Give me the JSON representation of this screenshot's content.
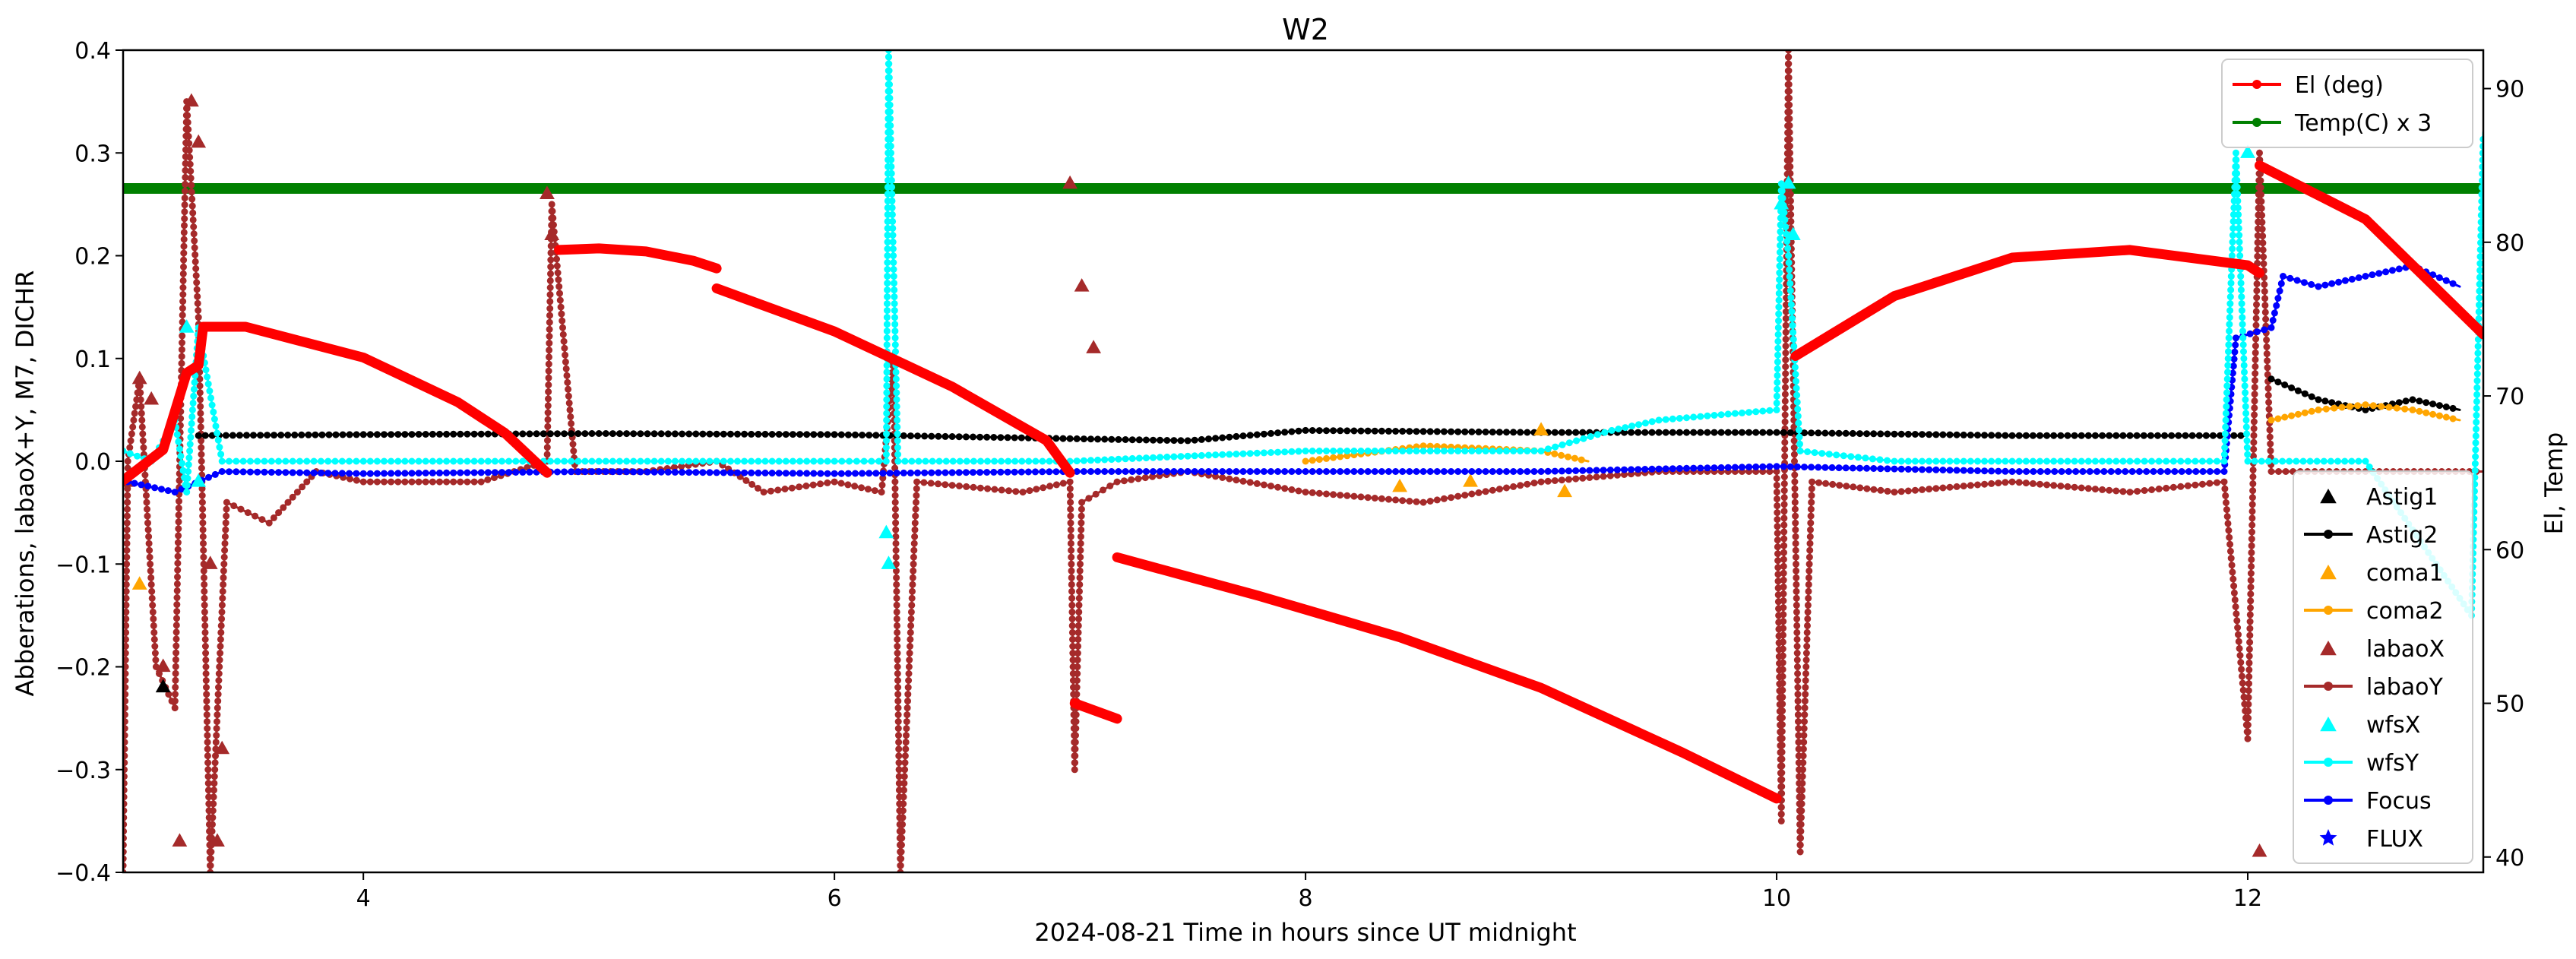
{
  "chart_data": {
    "type": "line",
    "title": "W2",
    "xlabel": "2024-08-21  Time in hours since UT midnight",
    "ylabel": "Abberations, labaoX+Y, M7, DICHR",
    "y2label": "El, Temp",
    "xlim": [
      2.98,
      13.0
    ],
    "ylim": [
      -0.4,
      0.4
    ],
    "y2lim": [
      39,
      92.5
    ],
    "x_ticks": [
      4,
      6,
      8,
      10,
      12
    ],
    "y_ticks": [
      -0.4,
      -0.3,
      -0.2,
      -0.1,
      0.0,
      0.1,
      0.2,
      0.3,
      0.4
    ],
    "y2_ticks": [
      40,
      50,
      60,
      70,
      80,
      90
    ],
    "x_tick_labels": [
      "4",
      "6",
      "8",
      "10",
      "12"
    ],
    "y_tick_labels": [
      "−0.4",
      "−0.3",
      "−0.2",
      "−0.1",
      "0.0",
      "0.1",
      "0.2",
      "0.3",
      "0.4"
    ],
    "y2_tick_labels": [
      "40",
      "50",
      "60",
      "70",
      "80",
      "90"
    ],
    "grid": false,
    "legend_right_axis": {
      "placement": "top-right",
      "entries": [
        {
          "name": "El (deg)",
          "color": "#ff0000",
          "marker": "dot-line"
        },
        {
          "name": "Temp(C) x 3",
          "color": "#008000",
          "marker": "dot-line"
        }
      ]
    },
    "legend_left_axis": {
      "placement": "lower-right",
      "entries": [
        {
          "name": "Astig1",
          "color": "#000000",
          "marker": "triangle"
        },
        {
          "name": "Astig2",
          "color": "#000000",
          "marker": "dot-line"
        },
        {
          "name": "coma1",
          "color": "#ffa500",
          "marker": "triangle"
        },
        {
          "name": "coma2",
          "color": "#ffa500",
          "marker": "dot-line"
        },
        {
          "name": "labaoX",
          "color": "#a52a2a",
          "marker": "triangle"
        },
        {
          "name": "labaoY",
          "color": "#a52a2a",
          "marker": "dot-line"
        },
        {
          "name": "wfsX",
          "color": "#00ffff",
          "marker": "triangle"
        },
        {
          "name": "wfsY",
          "color": "#00ffff",
          "marker": "dot-line"
        },
        {
          "name": "Focus",
          "color": "#0000ff",
          "marker": "dot-line"
        },
        {
          "name": "FLUX",
          "color": "#0000ff",
          "marker": "star"
        }
      ]
    },
    "series": [
      {
        "name": "El (deg)",
        "axis": "right",
        "color": "#ff0000",
        "style": "thick-dots",
        "segments": [
          [
            [
              2.98,
              64.5
            ],
            [
              3.15,
              66.5
            ],
            [
              3.25,
              71.5
            ],
            [
              3.3,
              72.0
            ],
            [
              3.32,
              74.5
            ],
            [
              3.5,
              74.5
            ],
            [
              4.0,
              72.5
            ],
            [
              4.4,
              69.6
            ],
            [
              4.6,
              67.6
            ],
            [
              4.78,
              65.0
            ]
          ],
          [
            [
              4.83,
              79.5
            ],
            [
              5.0,
              79.6
            ],
            [
              5.2,
              79.4
            ],
            [
              5.4,
              78.8
            ],
            [
              5.5,
              78.3
            ]
          ],
          [
            [
              5.5,
              77.0
            ],
            [
              6.0,
              74.2
            ],
            [
              6.5,
              70.6
            ],
            [
              6.9,
              67.1
            ],
            [
              7.0,
              65.0
            ]
          ],
          [
            [
              7.02,
              50.0
            ],
            [
              7.2,
              49.0
            ]
          ],
          [
            [
              7.2,
              59.5
            ],
            [
              7.8,
              57.0
            ],
            [
              8.4,
              54.3
            ],
            [
              9.0,
              51.0
            ],
            [
              9.6,
              46.8
            ],
            [
              10.0,
              43.8
            ]
          ],
          [
            [
              10.08,
              72.6
            ],
            [
              10.5,
              76.5
            ],
            [
              11.0,
              79.0
            ],
            [
              11.5,
              79.5
            ],
            [
              12.0,
              78.5
            ],
            [
              12.05,
              78.0
            ]
          ],
          [
            [
              12.05,
              85.0
            ],
            [
              12.5,
              81.5
            ],
            [
              13.0,
              74.0
            ]
          ]
        ]
      },
      {
        "name": "Temp(C) x 3",
        "axis": "right",
        "color": "#008000",
        "style": "thick",
        "segments": [
          [
            [
              2.98,
              83.5
            ],
            [
              13.0,
              83.5
            ]
          ]
        ]
      },
      {
        "name": "Astig2",
        "axis": "left",
        "color": "#000000",
        "style": "dots",
        "segments": [
          [
            [
              3.3,
              0.025
            ],
            [
              4.0,
              0.026
            ],
            [
              5.0,
              0.027
            ],
            [
              6.0,
              0.026
            ],
            [
              7.0,
              0.022
            ],
            [
              7.5,
              0.02
            ],
            [
              8.0,
              0.03
            ],
            [
              9.0,
              0.028
            ],
            [
              10.0,
              0.028
            ],
            [
              11.0,
              0.025
            ],
            [
              12.0,
              0.025
            ]
          ],
          [
            [
              12.1,
              0.08
            ],
            [
              12.3,
              0.06
            ],
            [
              12.5,
              0.05
            ],
            [
              12.7,
              0.06
            ],
            [
              12.9,
              0.05
            ]
          ]
        ]
      },
      {
        "name": "coma2",
        "axis": "left",
        "color": "#ffa500",
        "style": "dots",
        "segments": [
          [
            [
              8.0,
              0.0
            ],
            [
              8.5,
              0.015
            ],
            [
              9.0,
              0.01
            ],
            [
              9.2,
              0.0
            ]
          ],
          [
            [
              12.1,
              0.04
            ],
            [
              12.3,
              0.05
            ],
            [
              12.5,
              0.055
            ],
            [
              12.7,
              0.05
            ],
            [
              12.9,
              0.04
            ]
          ]
        ]
      },
      {
        "name": "coma1",
        "axis": "left",
        "color": "#ffa500",
        "style": "triangles",
        "points": [
          [
            3.05,
            -0.12
          ],
          [
            8.4,
            -0.025
          ],
          [
            8.7,
            -0.02
          ],
          [
            9.0,
            0.03
          ],
          [
            9.1,
            -0.03
          ]
        ]
      },
      {
        "name": "Astig1",
        "axis": "left",
        "color": "#000000",
        "style": "triangles",
        "points": [
          [
            3.15,
            -0.22
          ]
        ]
      },
      {
        "name": "labaoY",
        "axis": "left",
        "color": "#a52a2a",
        "style": "dots",
        "segments": [
          [
            [
              2.98,
              -0.4
            ],
            [
              3.0,
              0.0
            ],
            [
              3.05,
              0.08
            ],
            [
              3.12,
              -0.2
            ],
            [
              3.2,
              -0.24
            ],
            [
              3.25,
              0.35
            ],
            [
              3.3,
              0.14
            ],
            [
              3.35,
              -0.4
            ],
            [
              3.42,
              -0.04
            ],
            [
              3.6,
              -0.06
            ],
            [
              3.8,
              -0.01
            ],
            [
              4.0,
              -0.02
            ],
            [
              4.5,
              -0.02
            ],
            [
              4.78,
              0.0
            ],
            [
              4.8,
              0.25
            ],
            [
              4.9,
              -0.01
            ],
            [
              5.2,
              -0.01
            ],
            [
              5.5,
              0.0
            ],
            [
              5.7,
              -0.03
            ],
            [
              6.0,
              -0.02
            ],
            [
              6.2,
              -0.03
            ],
            [
              6.25,
              0.1
            ],
            [
              6.28,
              -0.4
            ],
            [
              6.35,
              -0.02
            ],
            [
              6.8,
              -0.03
            ],
            [
              7.0,
              -0.02
            ],
            [
              7.02,
              -0.3
            ],
            [
              7.05,
              -0.04
            ],
            [
              7.2,
              -0.02
            ],
            [
              7.5,
              -0.01
            ],
            [
              8.0,
              -0.03
            ],
            [
              8.5,
              -0.04
            ],
            [
              9.0,
              -0.02
            ],
            [
              9.5,
              -0.01
            ],
            [
              10.0,
              -0.01
            ],
            [
              10.02,
              -0.35
            ],
            [
              10.05,
              0.4
            ],
            [
              10.1,
              -0.38
            ],
            [
              10.15,
              -0.02
            ],
            [
              10.5,
              -0.03
            ],
            [
              11.0,
              -0.02
            ],
            [
              11.5,
              -0.03
            ],
            [
              11.9,
              -0.02
            ],
            [
              12.0,
              -0.27
            ],
            [
              12.05,
              0.3
            ],
            [
              12.1,
              -0.01
            ],
            [
              12.5,
              -0.01
            ],
            [
              13.0,
              -0.01
            ]
          ]
        ]
      },
      {
        "name": "labaoX",
        "axis": "left",
        "color": "#a52a2a",
        "style": "triangles",
        "points": [
          [
            3.0,
            -0.02
          ],
          [
            3.05,
            0.08
          ],
          [
            3.1,
            0.06
          ],
          [
            3.15,
            -0.2
          ],
          [
            3.22,
            -0.37
          ],
          [
            3.27,
            0.35
          ],
          [
            3.3,
            0.31
          ],
          [
            3.35,
            -0.1
          ],
          [
            3.38,
            -0.37
          ],
          [
            3.4,
            -0.28
          ],
          [
            4.78,
            0.26
          ],
          [
            4.8,
            0.22
          ],
          [
            6.25,
            0.1
          ],
          [
            7.0,
            0.27
          ],
          [
            7.05,
            0.17
          ],
          [
            7.1,
            0.11
          ],
          [
            12.05,
            -0.38
          ]
        ]
      },
      {
        "name": "wfsY",
        "axis": "left",
        "color": "#00ffff",
        "style": "dots",
        "segments": [
          [
            [
              2.98,
              0.01
            ],
            [
              3.1,
              0.0
            ],
            [
              3.2,
              0.04
            ],
            [
              3.25,
              -0.03
            ],
            [
              3.3,
              0.13
            ],
            [
              3.4,
              0.0
            ],
            [
              4.0,
              0.0
            ],
            [
              5.0,
              0.0
            ],
            [
              6.0,
              0.0
            ],
            [
              6.22,
              0.0
            ],
            [
              6.23,
              0.4
            ],
            [
              6.27,
              0.0
            ],
            [
              7.0,
              0.0
            ],
            [
              8.0,
              0.01
            ],
            [
              9.0,
              0.01
            ],
            [
              9.3,
              0.03
            ],
            [
              9.5,
              0.04
            ],
            [
              10.0,
              0.05
            ],
            [
              10.02,
              0.27
            ],
            [
              10.05,
              0.2
            ],
            [
              10.1,
              0.01
            ],
            [
              10.5,
              0.0
            ],
            [
              11.0,
              0.0
            ],
            [
              11.5,
              0.0
            ],
            [
              11.9,
              0.0
            ],
            [
              11.95,
              0.3
            ],
            [
              12.0,
              0.0
            ],
            [
              12.5,
              0.0
            ],
            [
              12.95,
              -0.15
            ],
            [
              13.0,
              0.32
            ]
          ]
        ]
      },
      {
        "name": "wfsX",
        "axis": "left",
        "color": "#00ffff",
        "style": "triangles",
        "points": [
          [
            3.25,
            0.13
          ],
          [
            3.3,
            -0.02
          ],
          [
            6.22,
            -0.07
          ],
          [
            6.23,
            -0.1
          ],
          [
            10.02,
            0.25
          ],
          [
            10.05,
            0.27
          ],
          [
            10.07,
            0.22
          ],
          [
            12.0,
            0.3
          ]
        ]
      },
      {
        "name": "Focus",
        "axis": "left",
        "color": "#0000ff",
        "style": "dots",
        "segments": [
          [
            [
              3.0,
              -0.02
            ],
            [
              3.2,
              -0.03
            ],
            [
              3.4,
              -0.01
            ],
            [
              4.0,
              -0.012
            ],
            [
              5.0,
              -0.01
            ],
            [
              6.0,
              -0.012
            ],
            [
              7.0,
              -0.01
            ],
            [
              8.0,
              -0.01
            ],
            [
              9.0,
              -0.01
            ],
            [
              10.0,
              -0.005
            ],
            [
              11.0,
              -0.01
            ],
            [
              11.9,
              -0.01
            ],
            [
              11.95,
              0.12
            ],
            [
              12.1,
              0.13
            ],
            [
              12.15,
              0.18
            ],
            [
              12.3,
              0.17
            ],
            [
              12.5,
              0.18
            ],
            [
              12.7,
              0.19
            ],
            [
              12.9,
              0.17
            ]
          ]
        ]
      }
    ]
  }
}
